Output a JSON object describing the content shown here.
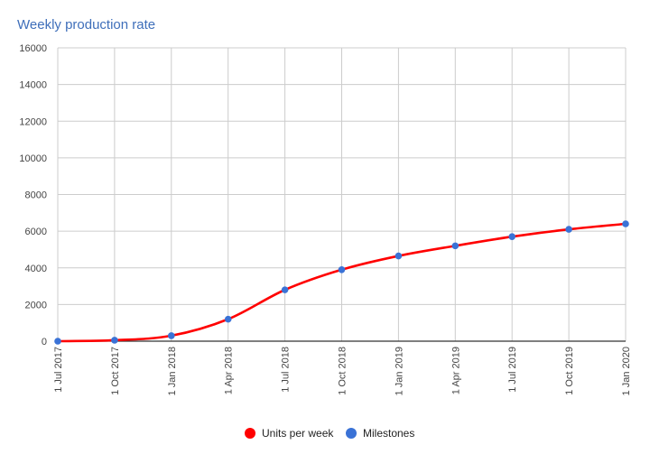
{
  "chart_data": {
    "type": "line",
    "title": "Weekly production rate",
    "x": [
      "1 Jul 2017",
      "1 Oct 2017",
      "1 Jan 2018",
      "1 Apr 2018",
      "1 Jul 2018",
      "1 Oct 2018",
      "1 Jan 2019",
      "1 Apr 2019",
      "1 Jul 2019",
      "1 Oct 2019",
      "1 Jan 2020"
    ],
    "series": [
      {
        "name": "Units per week",
        "color": "#ff0000",
        "values": [
          0,
          50,
          300,
          1200,
          2800,
          3900,
          4650,
          5200,
          5700,
          6100,
          6400
        ]
      },
      {
        "name": "Milestones",
        "color": "#3a72d6",
        "marker": "circle",
        "values": [
          0,
          50,
          300,
          1200,
          2800,
          3900,
          4650,
          5200,
          5700,
          6100,
          6400
        ]
      }
    ],
    "yticks": [
      "0",
      "2000",
      "4000",
      "6000",
      "8000",
      "10000",
      "12000",
      "14000",
      "16000"
    ],
    "ylim": [
      0,
      16000
    ],
    "grid": true,
    "legend_position": "bottom"
  }
}
